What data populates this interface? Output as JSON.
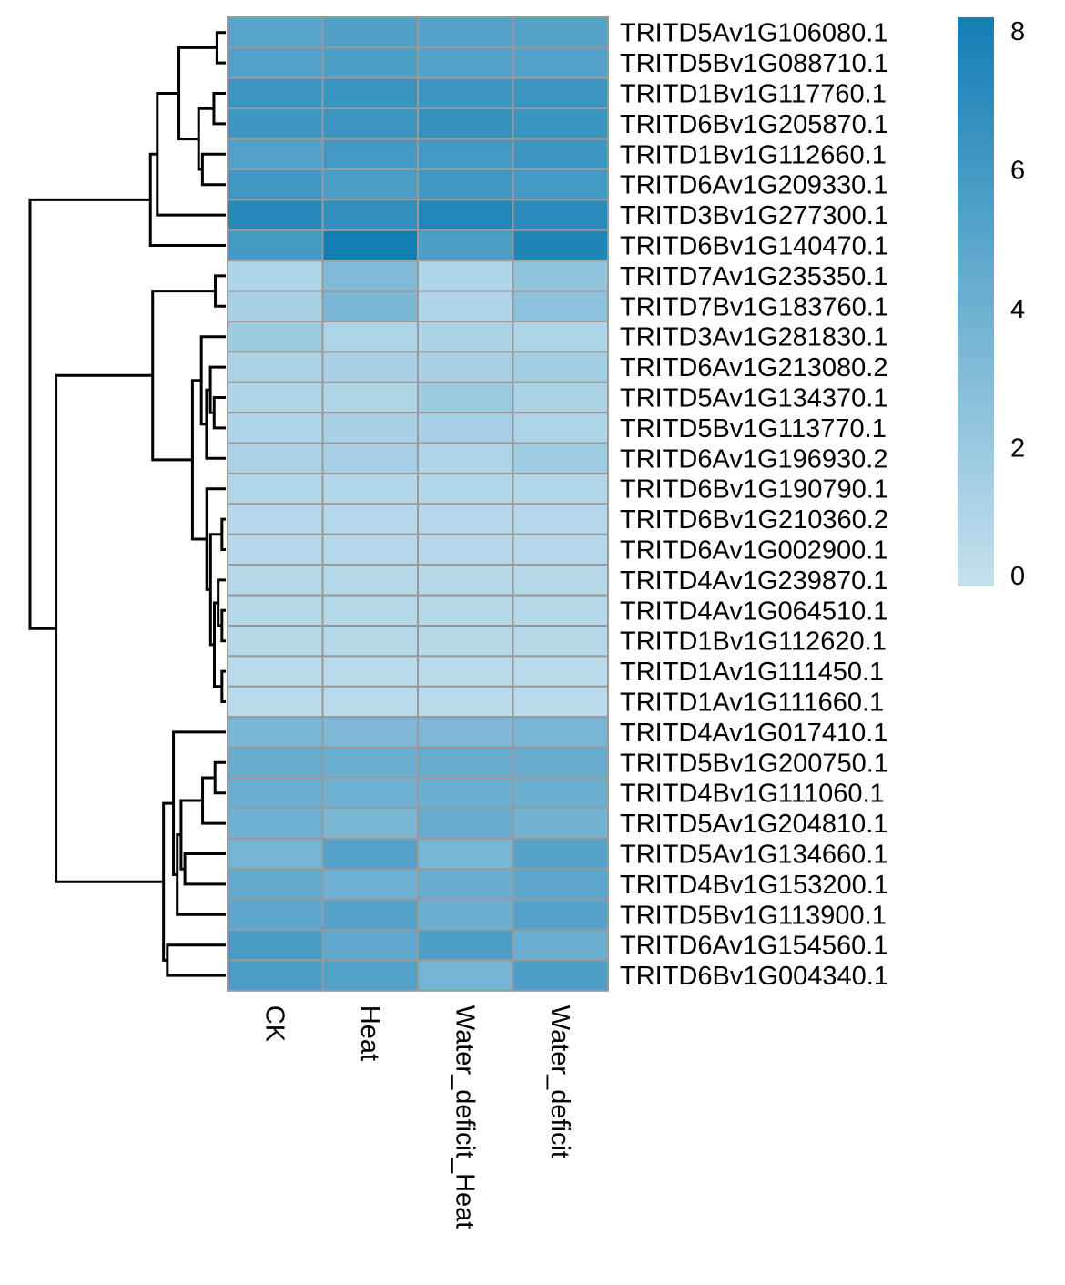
{
  "chart_data": {
    "type": "heatmap",
    "columns": [
      "CK",
      "Heat",
      "Water_deficit_Heat",
      "Water_deficit"
    ],
    "rows": [
      "TRITD5Av1G106080.1",
      "TRITD5Bv1G088710.1",
      "TRITD1Bv1G117760.1",
      "TRITD6Bv1G205870.1",
      "TRITD1Bv1G112660.1",
      "TRITD6Av1G209330.1",
      "TRITD3Bv1G277300.1",
      "TRITD6Bv1G140470.1",
      "TRITD7Av1G235350.1",
      "TRITD7Bv1G183760.1",
      "TRITD3Av1G281830.1",
      "TRITD6Av1G213080.2",
      "TRITD5Av1G134370.1",
      "TRITD5Bv1G113770.1",
      "TRITD6Av1G196930.2",
      "TRITD6Bv1G190790.1",
      "TRITD6Bv1G210360.2",
      "TRITD6Av1G002900.1",
      "TRITD4Av1G239870.1",
      "TRITD4Av1G064510.1",
      "TRITD1Bv1G112620.1",
      "TRITD1Av1G111450.1",
      "TRITD1Av1G111660.1",
      "TRITD4Av1G017410.1",
      "TRITD5Bv1G200750.1",
      "TRITD4Bv1G111060.1",
      "TRITD5Av1G204810.1",
      "TRITD5Av1G134660.1",
      "TRITD4Bv1G153200.1",
      "TRITD5Bv1G113900.1",
      "TRITD6Av1G154560.1",
      "TRITD6Bv1G004340.1"
    ],
    "values": [
      [
        5.0,
        5.4,
        5.2,
        5.1
      ],
      [
        5.3,
        5.5,
        5.3,
        5.2
      ],
      [
        6.3,
        6.5,
        6.2,
        6.3
      ],
      [
        6.2,
        6.3,
        6.6,
        6.4
      ],
      [
        5.3,
        6.0,
        6.0,
        6.2
      ],
      [
        6.1,
        5.6,
        6.1,
        6.0
      ],
      [
        7.2,
        6.8,
        7.5,
        7.1
      ],
      [
        5.9,
        8.2,
        5.6,
        7.6
      ],
      [
        1.0,
        3.2,
        1.0,
        2.4
      ],
      [
        1.3,
        3.4,
        1.0,
        2.6
      ],
      [
        1.9,
        1.1,
        1.2,
        1.1
      ],
      [
        1.2,
        1.3,
        1.4,
        1.6
      ],
      [
        1.1,
        1.1,
        1.9,
        1.2
      ],
      [
        1.1,
        1.3,
        1.5,
        1.1
      ],
      [
        1.2,
        1.5,
        1.1,
        1.7
      ],
      [
        0.9,
        0.9,
        0.9,
        0.9
      ],
      [
        0.8,
        0.8,
        0.8,
        0.8
      ],
      [
        0.8,
        0.8,
        0.8,
        0.8
      ],
      [
        0.7,
        0.7,
        0.7,
        0.7
      ],
      [
        0.7,
        0.7,
        0.7,
        0.7
      ],
      [
        0.7,
        0.7,
        0.7,
        0.7
      ],
      [
        0.6,
        0.6,
        0.6,
        0.6
      ],
      [
        0.6,
        0.6,
        0.6,
        0.6
      ],
      [
        3.5,
        3.3,
        3.3,
        3.6
      ],
      [
        4.4,
        4.2,
        4.4,
        4.3
      ],
      [
        4.2,
        4.0,
        4.1,
        4.2
      ],
      [
        4.0,
        3.4,
        4.4,
        3.8
      ],
      [
        3.7,
        5.2,
        3.6,
        5.1
      ],
      [
        4.5,
        4.0,
        4.3,
        4.9
      ],
      [
        4.8,
        5.2,
        4.1,
        5.2
      ],
      [
        5.8,
        4.7,
        5.5,
        4.2
      ],
      [
        5.6,
        5.3,
        3.7,
        5.5
      ]
    ],
    "color_scale": {
      "min": 0,
      "max": 8.2,
      "low_color": "#c5e1ef",
      "high_color": "#137eb3",
      "ticks": [
        0,
        2,
        4,
        6,
        8
      ]
    },
    "cell_border_color": "#999999",
    "row_dendrogram": true,
    "column_dendrogram": false,
    "legend_placement": "top-right"
  }
}
